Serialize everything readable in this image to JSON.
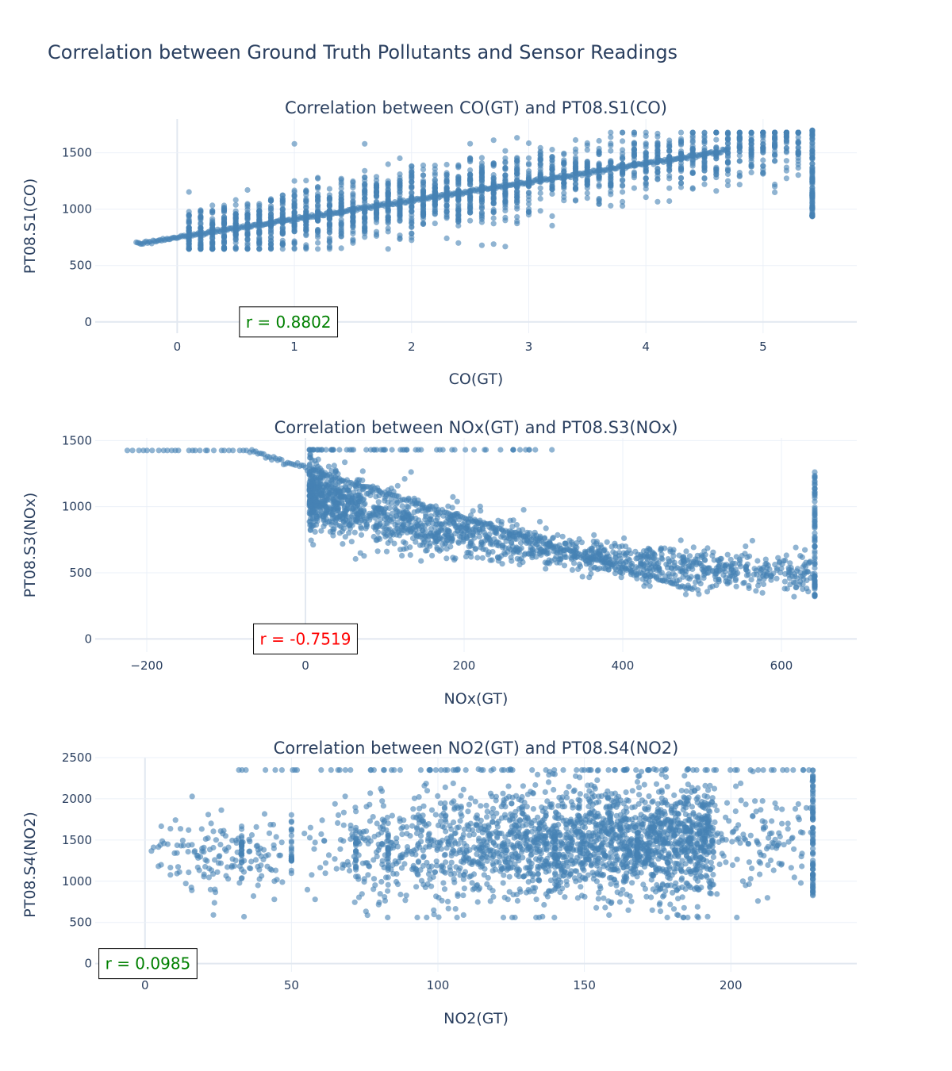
{
  "figure": {
    "title": "Correlation between Ground Truth Pollutants and Sensor Readings"
  },
  "chart_data": [
    {
      "type": "scatter",
      "title": "Correlation between CO(GT) and PT08.S1(CO)",
      "xlabel": "CO(GT)",
      "ylabel": "PT08.S1(CO)",
      "xlim": [
        -0.7,
        5.8
      ],
      "ylim": [
        -100,
        1800
      ],
      "xticks": [
        0,
        1,
        2,
        3,
        4,
        5
      ],
      "yticks": [
        0,
        500,
        1000,
        1500
      ],
      "xtick_labels": [
        "0",
        "1",
        "2",
        "3",
        "4",
        "5"
      ],
      "ytick_labels": [
        "0",
        "500",
        "1000",
        "1500"
      ],
      "grid": true,
      "marker_color": "#4682b4",
      "annotation": {
        "text": "r = 0.8802",
        "color": "#008000",
        "x": 0.95,
        "y": 0
      },
      "trend": {
        "x0": -0.35,
        "y0": 690,
        "x1": 5.42,
        "y1": 1640
      },
      "x_range": [
        -0.35,
        5.42
      ],
      "x_step": 0.1,
      "y_clip": [
        647,
        1680
      ],
      "spread_sd": 140,
      "cap": {
        "x": 5.42,
        "y_min": 930,
        "y_max": 1700
      }
    },
    {
      "type": "scatter",
      "title": "Correlation between NOx(GT) and PT08.S3(NOx)",
      "xlabel": "NOx(GT)",
      "ylabel": "PT08.S3(NOx)",
      "xlim": [
        -265,
        695
      ],
      "ylim": [
        -100,
        1520
      ],
      "xticks": [
        -200,
        0,
        200,
        400,
        600
      ],
      "yticks": [
        0,
        500,
        1000,
        1500
      ],
      "xtick_labels": [
        "−200",
        "0",
        "200",
        "400",
        "600"
      ],
      "ytick_labels": [
        "0",
        "500",
        "1000",
        "1500"
      ],
      "grid": true,
      "marker_color": "#4682b4",
      "annotation": {
        "text": "r = -0.7519",
        "color": "#ff0000",
        "x": 0,
        "y": 0
      },
      "plateau": {
        "x_min": -222,
        "x_max": -70,
        "y": 1425
      },
      "top_band": {
        "x_min": 5,
        "x_max": 330,
        "y": 1430
      },
      "diagonal": {
        "x0": -70,
        "y0": 1425,
        "x1": 490,
        "y1": 370
      },
      "cluster": {
        "x_min": 5,
        "x_max": 642,
        "curve": [
          [
            10,
            1080
          ],
          [
            80,
            950
          ],
          [
            150,
            850
          ],
          [
            250,
            730
          ],
          [
            350,
            630
          ],
          [
            450,
            560
          ],
          [
            550,
            520
          ],
          [
            640,
            490
          ]
        ]
      },
      "cap": {
        "x": 642,
        "y_min": 320,
        "y_max": 1270
      }
    },
    {
      "type": "scatter",
      "title": "Correlation between NO2(GT) and PT08.S4(NO2)",
      "xlabel": "NO2(GT)",
      "ylabel": "PT08.S4(NO2)",
      "xlim": [
        -17,
        243
      ],
      "ylim": [
        -100,
        2500
      ],
      "xticks": [
        0,
        50,
        100,
        150,
        200
      ],
      "yticks": [
        0,
        500,
        1000,
        1500,
        2000,
        2500
      ],
      "xtick_labels": [
        "0",
        "50",
        "100",
        "150",
        "200"
      ],
      "ytick_labels": [
        "0",
        "500",
        "1000",
        "1500",
        "2000",
        "2500"
      ],
      "grid": true,
      "marker_color": "#4682b4",
      "annotation": {
        "text": "r = 0.0985",
        "color": "#008000",
        "x": 1,
        "y": 0
      },
      "cluster": {
        "x_min": 2,
        "x_max": 228,
        "y_center": 1420,
        "y_sd": 330
      },
      "top_band": {
        "y": 2350,
        "x_min": 32,
        "x_max": 228
      },
      "cap": {
        "x": 228,
        "y_min": 800,
        "y_max": 2350
      }
    }
  ]
}
